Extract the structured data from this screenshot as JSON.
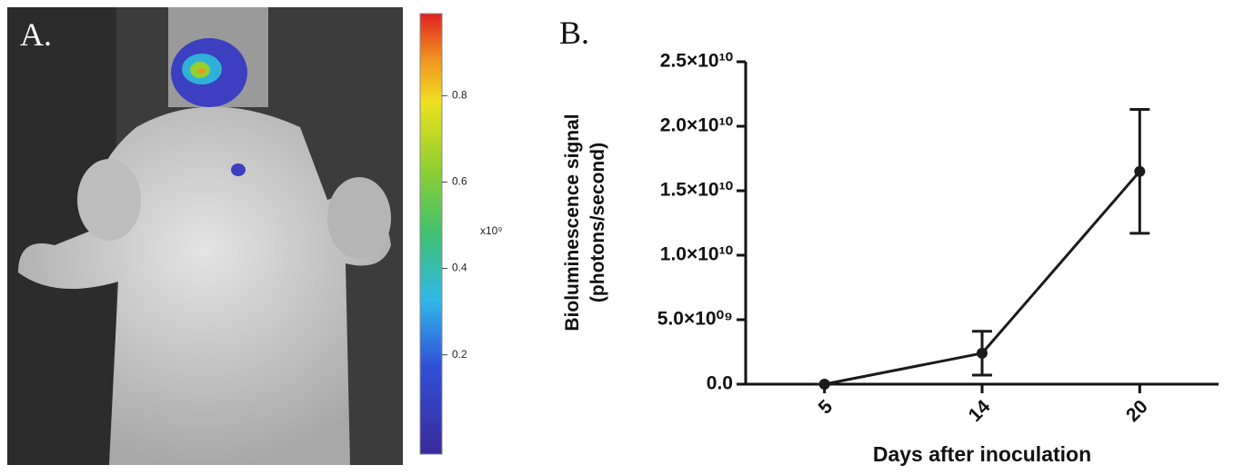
{
  "chart_data": [
    {
      "type": "colorbar",
      "title": "A.",
      "unit_label": "x10⁹",
      "ylim": [
        -0.03,
        0.99
      ],
      "yticks": [
        0.2,
        0.4,
        0.6,
        0.8
      ]
    },
    {
      "type": "line",
      "title": "B.",
      "y_label": [
        "Bioluminescence signal",
        "(photons/second)"
      ],
      "x_label": "Days after inoculation",
      "categories": [
        "5",
        "14",
        "20"
      ],
      "values": [
        0,
        2400000000,
        16500000000
      ],
      "errors": [
        0,
        1700000000,
        4800000000
      ],
      "color": "#1a1a1a",
      "ylim": [
        0,
        25000000000
      ],
      "yticks": [
        {
          "value": 0,
          "label": "0.0"
        },
        {
          "value": 5000000000,
          "label": "5.0×10⁰⁹"
        },
        {
          "value": 10000000000,
          "label": "1.0×10¹⁰"
        },
        {
          "value": 15000000000,
          "label": "1.5×10¹⁰"
        },
        {
          "value": 20000000000,
          "label": "2.0×10¹⁰"
        },
        {
          "value": 25000000000,
          "label": "2.5×10¹⁰"
        }
      ]
    }
  ]
}
